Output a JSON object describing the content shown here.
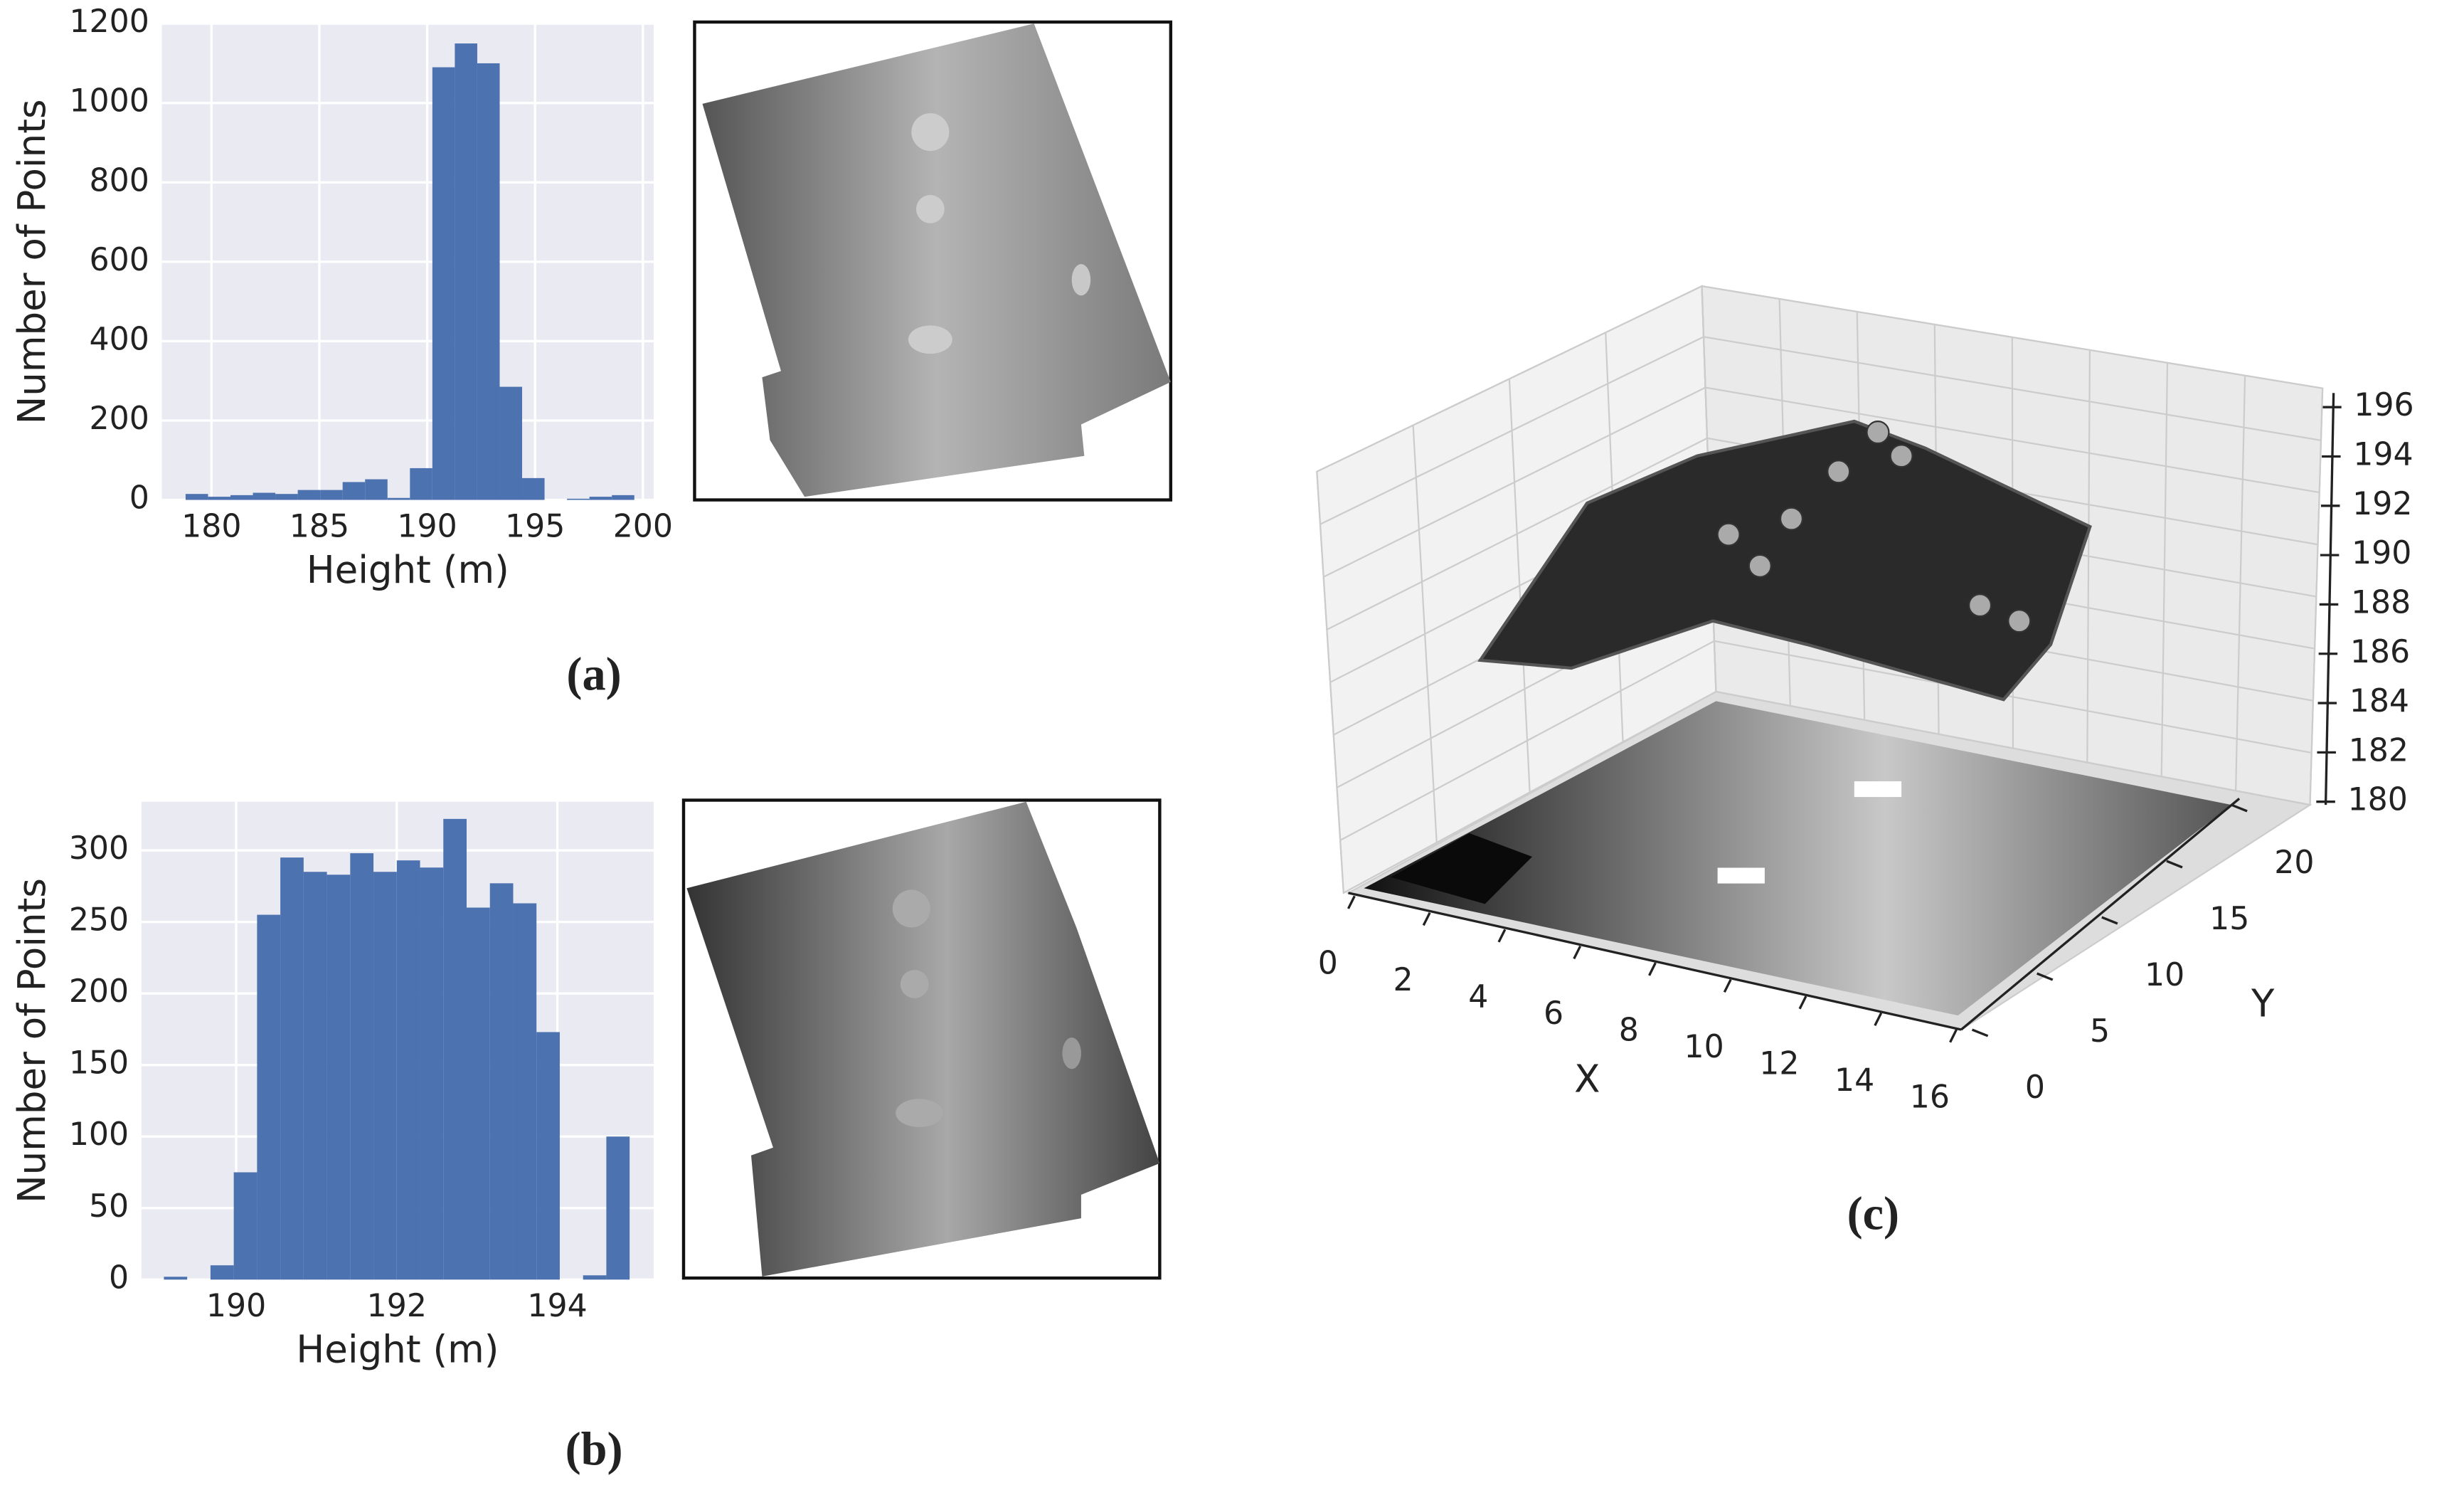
{
  "chart_data": [
    {
      "type": "histogram",
      "caption": "(a)",
      "xlabel": "Height (m)",
      "ylabel": "Number of Points",
      "color": "#4c72b0",
      "bins": [
        178.8,
        179.84,
        180.88,
        181.92,
        182.96,
        184.0,
        185.04,
        186.08,
        187.12,
        188.16,
        189.2,
        190.24,
        191.28,
        192.32,
        193.36,
        194.4,
        195.44,
        196.48,
        197.52,
        198.56,
        199.6
      ],
      "values": [
        15,
        8,
        12,
        18,
        15,
        25,
        25,
        45,
        52,
        5,
        80,
        1090,
        1150,
        1100,
        285,
        55,
        0,
        3,
        8,
        12
      ],
      "xlim": [
        177.7,
        200.5
      ],
      "ylim": [
        0,
        1200
      ],
      "xticks": [
        180,
        185,
        190,
        195,
        200
      ],
      "yticks": [
        0,
        200,
        400,
        600,
        800,
        1000,
        1200
      ],
      "grid": true
    },
    {
      "type": "histogram",
      "caption": "(b)",
      "xlabel": "Height (m)",
      "ylabel": "Number of Points",
      "color": "#4c72b0",
      "bins": [
        189.1,
        189.39,
        189.68,
        189.97,
        190.26,
        190.55,
        190.84,
        191.13,
        191.42,
        191.71,
        192.0,
        192.29,
        192.58,
        192.87,
        193.16,
        193.45,
        193.74,
        194.03,
        194.32,
        194.61,
        194.9
      ],
      "values": [
        2,
        0,
        10,
        75,
        255,
        295,
        285,
        283,
        298,
        285,
        293,
        288,
        322,
        260,
        277,
        263,
        173,
        0,
        3,
        100
      ],
      "xlim": [
        188.82,
        195.2
      ],
      "ylim": [
        0,
        334
      ],
      "xticks": [
        190,
        192,
        194
      ],
      "yticks": [
        0,
        50,
        100,
        150,
        200,
        250,
        300
      ],
      "grid": true
    },
    {
      "type": "scatter3d",
      "caption": "(c)",
      "xlabel": "X",
      "ylabel": "Y",
      "xlim": [
        0,
        16
      ],
      "ylim": [
        0,
        20
      ],
      "zlim": [
        180,
        196
      ],
      "xticks": [
        0,
        2,
        4,
        6,
        8,
        10,
        12,
        14,
        16
      ],
      "yticks": [
        0,
        5,
        10,
        15,
        20
      ],
      "zticks": [
        180,
        182,
        184,
        186,
        188,
        190,
        192,
        194,
        196
      ],
      "grid": true
    }
  ]
}
